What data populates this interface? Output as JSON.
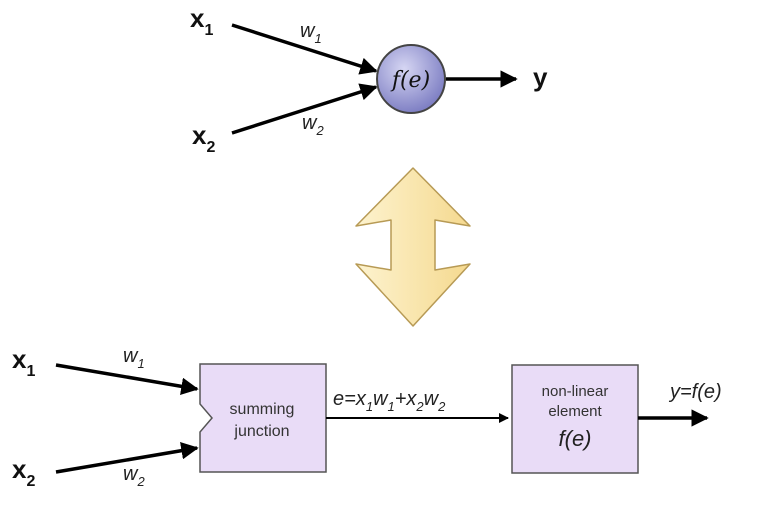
{
  "top": {
    "x_main": "x",
    "sub_1": "1",
    "sub_2": "2",
    "w_main": "w",
    "neuron_label": "f(e)",
    "output": "y"
  },
  "bottom": {
    "x_main": "x",
    "sub_1": "1",
    "sub_2": "2",
    "w_main": "w",
    "summing_line1": "summing",
    "summing_line2": "junction",
    "e_eq": "e=",
    "e_x": "x",
    "e_w": "w",
    "e_plus": "+",
    "sub1": "1",
    "sub2": "2",
    "nonlinear_line1": "non-linear",
    "nonlinear_line2": "element",
    "nonlinear_func": "f(e)",
    "output_eq": "y=f(e)"
  },
  "colors": {
    "neuron_fill": "#8f8fcf",
    "box_fill": "#e9dcf7",
    "arrow_fill": "#fbe7ae",
    "stroke": "#000000"
  }
}
